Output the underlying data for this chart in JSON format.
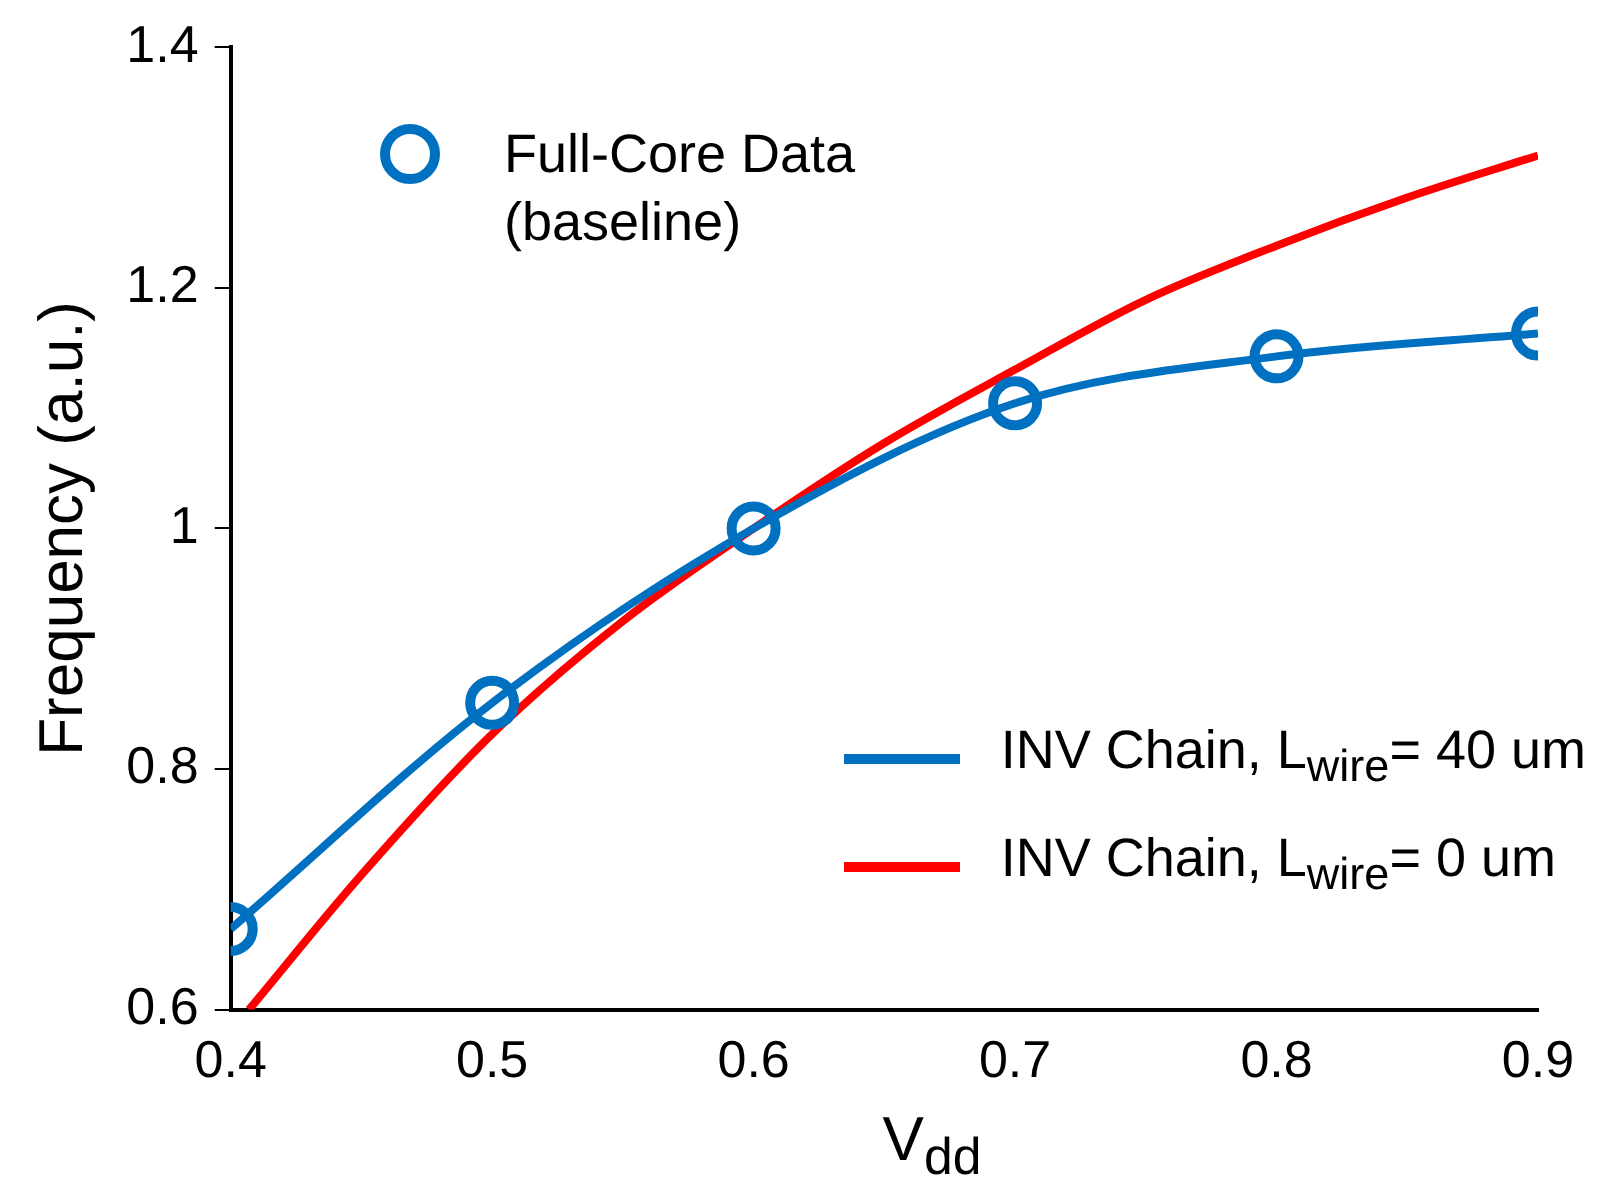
{
  "chart_data": {
    "type": "line",
    "xlabel": "V$_{dd}$",
    "ylabel": "Frequency (a.u.)",
    "xlim": [
      0.4,
      0.9
    ],
    "xticks": [
      0.4,
      0.5,
      0.6,
      0.7,
      0.8,
      0.9
    ],
    "ylim": [
      0.6,
      1.4
    ],
    "yticks": [
      0.6,
      0.8,
      1,
      1.2,
      1.4
    ],
    "grid": false,
    "legend": "right",
    "series": [
      {
        "name": "Full-Core Data (baseline)",
        "type": "scatter",
        "marker": "circle",
        "color": "#0070c0",
        "x": [
          0.4,
          0.5,
          0.6,
          0.7,
          0.8,
          0.9
        ],
        "values": [
          0.667,
          0.855,
          1.0,
          1.104,
          1.143,
          1.162
        ]
      },
      {
        "name": "INV Chain, L$_{wire}$= 40 um",
        "color": "#0070c0",
        "x": [
          0.4,
          0.5,
          0.6,
          0.7,
          0.8,
          0.9
        ],
        "values": [
          0.667,
          0.855,
          1.0,
          1.104,
          1.143,
          1.162
        ]
      },
      {
        "name": "INV Chain, L$_{wire}$= 0 um",
        "color": "#ff0000",
        "x": [
          0.407,
          0.45,
          0.5,
          0.55,
          0.6,
          0.65,
          0.7,
          0.75,
          0.8,
          0.85,
          0.9
        ],
        "values": [
          0.6,
          0.712,
          0.829,
          0.923,
          1.0,
          1.071,
          1.132,
          1.19,
          1.235,
          1.275,
          1.31
        ]
      }
    ]
  }
}
